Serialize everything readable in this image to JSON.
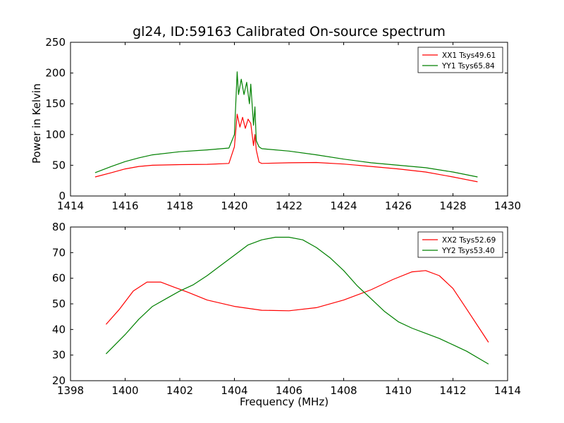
{
  "chart_data": [
    {
      "type": "line",
      "title": "gl24, ID:59163 Calibrated On-source spectrum",
      "xlabel": "",
      "ylabel": "Power in Kelvin",
      "xlim": [
        1414,
        1430
      ],
      "ylim": [
        0,
        250
      ],
      "xticks": [
        1414,
        1416,
        1418,
        1420,
        1422,
        1424,
        1426,
        1428,
        1430
      ],
      "yticks": [
        0,
        50,
        100,
        150,
        200,
        250
      ],
      "legend_position": "top-right",
      "grid": false,
      "series": [
        {
          "name": "XX1 Tsys49.61",
          "color": "#ff0000",
          "x": [
            1414.9,
            1415.5,
            1416,
            1416.5,
            1417,
            1418,
            1419,
            1419.8,
            1420.0,
            1420.1,
            1420.2,
            1420.3,
            1420.4,
            1420.5,
            1420.6,
            1420.7,
            1420.75,
            1420.8,
            1420.9,
            1421.0,
            1422,
            1423,
            1424,
            1425,
            1426,
            1427,
            1428,
            1428.9
          ],
          "y": [
            31,
            38,
            44,
            48,
            50,
            51,
            51.5,
            53,
            80,
            133,
            112,
            128,
            110,
            125,
            118,
            82,
            100,
            75,
            55,
            53,
            54,
            54.5,
            52,
            48,
            44,
            39,
            31,
            23
          ]
        },
        {
          "name": "YY1 Tsys65.84",
          "color": "#008000",
          "x": [
            1414.9,
            1415.5,
            1416,
            1416.5,
            1417,
            1418,
            1419,
            1419.8,
            1420.0,
            1420.1,
            1420.15,
            1420.25,
            1420.35,
            1420.45,
            1420.55,
            1420.6,
            1420.7,
            1420.75,
            1420.8,
            1420.9,
            1421.0,
            1422,
            1423,
            1424,
            1425,
            1426,
            1427,
            1428,
            1428.9
          ],
          "y": [
            38,
            48,
            56,
            62,
            67,
            72,
            75,
            78,
            100,
            202,
            165,
            190,
            165,
            185,
            150,
            182,
            115,
            145,
            90,
            80,
            77,
            73,
            67,
            60,
            54,
            50,
            46,
            39,
            31
          ]
        }
      ]
    },
    {
      "type": "line",
      "title": "",
      "xlabel": "Frequency (MHz)",
      "ylabel": "",
      "xlim": [
        1398,
        1414
      ],
      "ylim": [
        20,
        80
      ],
      "xticks": [
        1398,
        1400,
        1402,
        1404,
        1406,
        1408,
        1410,
        1412,
        1414
      ],
      "yticks": [
        20,
        30,
        40,
        50,
        60,
        70,
        80
      ],
      "legend_position": "top-right",
      "grid": false,
      "series": [
        {
          "name": "XX2 Tsys52.69",
          "color": "#ff0000",
          "x": [
            1399.3,
            1399.8,
            1400.3,
            1400.8,
            1401.3,
            1401.8,
            1402.3,
            1403,
            1404,
            1405,
            1406,
            1407,
            1408,
            1409,
            1409.8,
            1410.5,
            1411,
            1411.5,
            1412,
            1412.5,
            1413.3
          ],
          "y": [
            42,
            48,
            55,
            58.5,
            58.5,
            56.5,
            54.5,
            51.5,
            49,
            47.5,
            47.3,
            48.5,
            51.5,
            55.5,
            59.5,
            62.5,
            63,
            61,
            56,
            48,
            35
          ]
        },
        {
          "name": "YY2 Tsys53.40",
          "color": "#008000",
          "x": [
            1399.3,
            1400,
            1400.5,
            1401,
            1401.5,
            1402,
            1402.5,
            1403,
            1403.5,
            1404,
            1404.5,
            1405,
            1405.5,
            1406,
            1406.5,
            1407,
            1407.5,
            1408,
            1408.5,
            1409,
            1409.5,
            1410,
            1410.5,
            1411,
            1411.5,
            1412,
            1412.5,
            1413.3
          ],
          "y": [
            30.5,
            38,
            44,
            49,
            52,
            55,
            57.5,
            61,
            65,
            69,
            73,
            75,
            76,
            76,
            75,
            72,
            68,
            63,
            57,
            52,
            47,
            43,
            40.5,
            38.5,
            36.5,
            34,
            31.5,
            26.5
          ]
        }
      ]
    }
  ]
}
